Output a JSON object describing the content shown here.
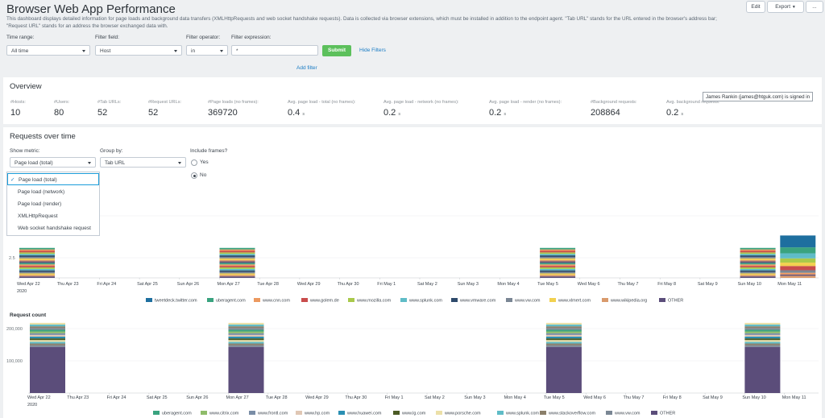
{
  "header": {
    "title": "Browser Web App Performance",
    "description": "This dashboard displays detailed information for page loads and background data transfers (XMLHttpRequests and web socket handshake requests). Data is collected via browser extensions, which must be installed in addition to the endpoint agent. \"Tab URL\" stands for the URL entered in the browser's address bar; \"Request URL\" stands for an address the browser exchanged data with.",
    "edit_label": "Edit",
    "export_label": "Export",
    "more_label": "..."
  },
  "filters": {
    "time_range_label": "Time range:",
    "time_range_value": "All time",
    "field_label": "Filter field:",
    "field_value": "Host",
    "operator_label": "Filter operator:",
    "operator_value": "in",
    "expression_label": "Filter expression:",
    "expression_value": "*",
    "submit_label": "Submit",
    "hide_filters_label": "Hide Filters",
    "add_filter_label": "Add filter"
  },
  "overview": {
    "title": "Overview",
    "kpis": [
      {
        "label": "#Hosts:",
        "value": "10",
        "unit": ""
      },
      {
        "label": "#Users:",
        "value": "80",
        "unit": ""
      },
      {
        "label": "#Tab URLs:",
        "value": "52",
        "unit": ""
      },
      {
        "label": "#Request URLs:",
        "value": "52",
        "unit": ""
      },
      {
        "label": "#Page loads (no frames):",
        "value": "369720",
        "unit": ""
      },
      {
        "label": "Avg. page load - total (no frames):",
        "value": "0.4",
        "unit": "s"
      },
      {
        "label": "Avg. page load - network (no frames):",
        "value": "0.2",
        "unit": "s"
      },
      {
        "label": "Avg. page load - render (no frames):",
        "value": "0.2",
        "unit": "s"
      },
      {
        "label": "#Background requests:",
        "value": "208864",
        "unit": ""
      },
      {
        "label": "Avg. background requests:",
        "value": "0.2",
        "unit": "s"
      }
    ],
    "tooltip": "James Rankin (james@htguk.com) is signed in"
  },
  "requests": {
    "title": "Requests over time",
    "metric_label": "Show metric:",
    "metric_value": "Page load (total)",
    "groupby_label": "Group by:",
    "groupby_value": "Tab URL",
    "frames_label": "Include frames?",
    "frames_yes": "Yes",
    "frames_no": "No",
    "dropdown_options": [
      "Page load (total)",
      "Page load (network)",
      "Page load (render)",
      "XMLHttpRequest",
      "Web socket handshake request"
    ],
    "check_mark": "✓"
  },
  "chart_data": [
    {
      "type": "bar",
      "stacked": true,
      "title": "",
      "ylabel": "",
      "ytick_labels": [
        "2.5"
      ],
      "year_label": "2020",
      "categories": [
        "Wed Apr 22",
        "Thu Apr 23",
        "Fri Apr 24",
        "Sat Apr 25",
        "Sun Apr 26",
        "Mon Apr 27",
        "Tue Apr 28",
        "Wed Apr 29",
        "Thu Apr 30",
        "Fri May 1",
        "Sat May 2",
        "Sun May 3",
        "Mon May 4",
        "Tue May 5",
        "Wed May 6",
        "Thu May 7",
        "Fri May 8",
        "Sat May 9",
        "Sun May 10",
        "Mon May 11"
      ],
      "legend": [
        {
          "name": "tweetdeck.twitter.com",
          "color": "#1e6f9f"
        },
        {
          "name": "uberagent.com",
          "color": "#3aa37f"
        },
        {
          "name": "www.cnn.com",
          "color": "#ec9960"
        },
        {
          "name": "www.golem.de",
          "color": "#c94c4c"
        },
        {
          "name": "www.mozilla.com",
          "color": "#a9c94b"
        },
        {
          "name": "www.splunk.com",
          "color": "#5fbcc7"
        },
        {
          "name": "www.vmware.com",
          "color": "#2e4a6b"
        },
        {
          "name": "www.vw.com",
          "color": "#7a8694"
        },
        {
          "name": "www.xlmert.com",
          "color": "#f2d14f"
        },
        {
          "name": "www.wikipedia.org",
          "color": "#d99a6c"
        },
        {
          "name": "OTHER",
          "color": "#5b4d7a"
        }
      ],
      "stack_order": [
        "uberagent.com",
        "www.cnn.com",
        "www.golem.de",
        "www.mozilla.com",
        "www.splunk.com",
        "www.vmware.com",
        "www.vw.com",
        "www.xlmert.com",
        "www.wikipedia.org",
        "OTHER"
      ],
      "ylim": [
        0,
        6
      ],
      "values": [
        {
          "category": "Wed Apr 22",
          "total": 2.9
        },
        {
          "category": "Mon Apr 27",
          "total": 2.9
        },
        {
          "category": "Tue May 5",
          "total": 2.9
        },
        {
          "category": "Sun May 10",
          "total": 2.9
        },
        {
          "category": "Mon May 11",
          "total": 4.1
        }
      ]
    },
    {
      "type": "bar",
      "stacked": true,
      "title": "Request count",
      "ytick_labels": [
        "200,000",
        "100,000"
      ],
      "year_label": "2020",
      "ylim": [
        0,
        200000
      ],
      "categories": [
        "Wed Apr 22",
        "Thu Apr 23",
        "Fri Apr 24",
        "Sat Apr 25",
        "Sun Apr 26",
        "Mon Apr 27",
        "Tue Apr 28",
        "Wed Apr 29",
        "Thu Apr 30",
        "Fri May 1",
        "Sat May 2",
        "Sun May 3",
        "Mon May 4",
        "Tue May 5",
        "Wed May 6",
        "Thu May 7",
        "Fri May 8",
        "Sat May 9",
        "Sun May 10",
        "Mon May 11"
      ],
      "legend": [
        {
          "name": "uberagent.com",
          "color": "#3aa37f"
        },
        {
          "name": "www.citrix.com",
          "color": "#8fbc6a"
        },
        {
          "name": "www.frontl.com",
          "color": "#7a8da6"
        },
        {
          "name": "www.hp.com",
          "color": "#e0c7b4"
        },
        {
          "name": "www.huawei.com",
          "color": "#2a8fb3"
        },
        {
          "name": "www.lg.com",
          "color": "#4a5a24"
        },
        {
          "name": "www.porsche.com",
          "color": "#ece0a8"
        },
        {
          "name": "www.splunk.com",
          "color": "#5fbcc7"
        },
        {
          "name": "www.stackoverflow.com",
          "color": "#8a7f6a"
        },
        {
          "name": "www.vw.com",
          "color": "#7a8694"
        },
        {
          "name": "OTHER",
          "color": "#5b4d7a"
        }
      ],
      "values": [
        {
          "category": "Wed Apr 22",
          "other": 130000,
          "total": 198000
        },
        {
          "category": "Mon Apr 27",
          "other": 130000,
          "total": 198000
        },
        {
          "category": "Tue May 5",
          "other": 130000,
          "total": 198000
        },
        {
          "category": "Sun May 10",
          "other": 130000,
          "total": 198000
        }
      ]
    }
  ]
}
